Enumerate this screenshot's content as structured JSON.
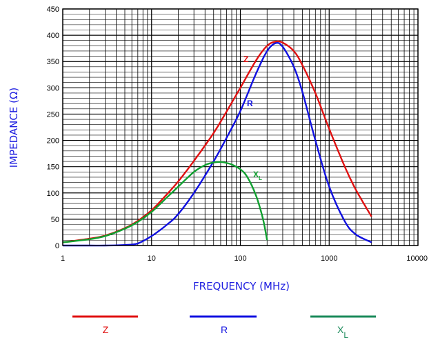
{
  "chart_data": {
    "type": "line",
    "xlabel": "FREQUENCY (MHz)",
    "ylabel": "IMPEDANCE (Ω)",
    "xscale": "log",
    "xlim": [
      1,
      10000
    ],
    "ylim": [
      0,
      450
    ],
    "grid": true,
    "x_ticks": [
      "1",
      "10",
      "100",
      "1000",
      "10000"
    ],
    "y_ticks": [
      "0",
      "50",
      "100",
      "150",
      "200",
      "250",
      "300",
      "350",
      "400",
      "450"
    ],
    "legend_position": "bottom",
    "series": [
      {
        "name": "Z",
        "color": "#e01010",
        "x": [
          1,
          2,
          3,
          5,
          7,
          10,
          15,
          20,
          30,
          50,
          70,
          100,
          150,
          200,
          250,
          300,
          400,
          500,
          700,
          1000,
          1500,
          2000,
          3000
        ],
        "y": [
          6,
          13,
          19,
          33,
          47,
          67,
          98,
          122,
          161,
          214,
          255,
          300,
          352,
          380,
          388,
          386,
          370,
          343,
          290,
          222,
          150,
          106,
          55
        ]
      },
      {
        "name": "R",
        "color": "#1010e0",
        "x": [
          1,
          2,
          3,
          5,
          7,
          10,
          15,
          20,
          30,
          50,
          70,
          100,
          150,
          200,
          250,
          300,
          400,
          500,
          700,
          1000,
          1500,
          2000,
          3000
        ],
        "y": [
          0,
          0,
          0,
          1,
          4,
          18,
          40,
          60,
          100,
          160,
          205,
          256,
          327,
          370,
          385,
          378,
          340,
          292,
          200,
          112,
          46,
          21,
          6
        ]
      },
      {
        "name": "XL",
        "color": "#10a030",
        "x": [
          1,
          2,
          3,
          5,
          7,
          10,
          15,
          20,
          30,
          40,
          50,
          60,
          70,
          80,
          100,
          120,
          150,
          180,
          200
        ],
        "y": [
          6,
          12,
          18,
          32,
          45,
          64,
          92,
          112,
          140,
          153,
          158,
          159,
          157,
          154,
          145,
          130,
          95,
          50,
          10
        ]
      }
    ],
    "curve_labels": [
      {
        "text": "Z",
        "sub": "",
        "series": "Z"
      },
      {
        "text": "R",
        "sub": "",
        "series": "R"
      },
      {
        "text": "X",
        "sub": "L",
        "series": "XL"
      }
    ],
    "legend": [
      {
        "text": "Z",
        "sub": "",
        "color": "#e01010",
        "line_color": "#e01010"
      },
      {
        "text": "R",
        "sub": "",
        "color": "#1010e0",
        "line_color": "#1010e0"
      },
      {
        "text": "X",
        "sub": "L",
        "color": "#1a8a5a",
        "line_color": "#1a8a5a"
      }
    ]
  },
  "colors": {
    "axis_title": "#1f1fe0",
    "grid": "#000000"
  }
}
